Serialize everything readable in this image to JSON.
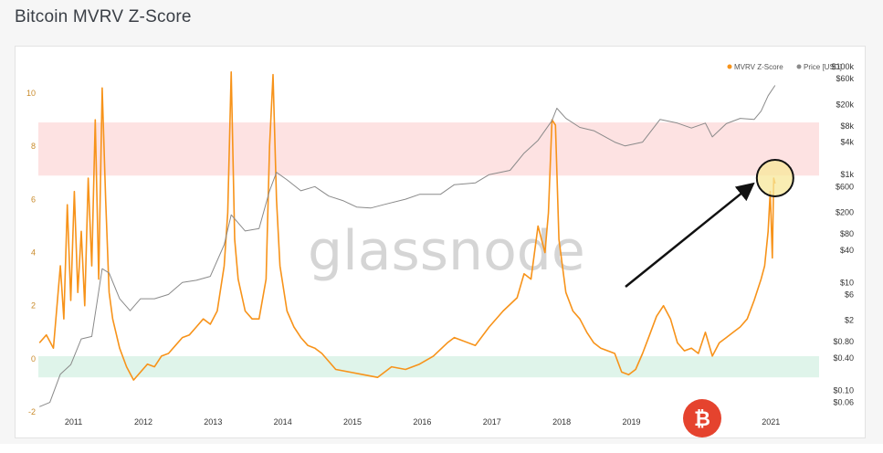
{
  "page": {
    "title": "Bitcoin MVRV Z-Score"
  },
  "watermark": "glassnode",
  "colors": {
    "mvrv": "#f7931a",
    "price": "#8a8a8a",
    "red_band": "#fde2e2",
    "green_band": "#dff4ea",
    "highlight": "#f7e79a",
    "arrow": "#111111",
    "logo": "#e5432e"
  },
  "logo_icon": "bitcoin-logo",
  "chart_data": {
    "type": "line",
    "title": "",
    "xlabel": "",
    "ylabel": "",
    "x_ticks": [
      "2011",
      "2012",
      "2013",
      "2014",
      "2015",
      "2016",
      "2017",
      "2018",
      "2019",
      "2020",
      "2021"
    ],
    "x_range": [
      2010.6,
      2021.6
    ],
    "left_axis": {
      "ticks": [
        -2,
        0,
        2,
        4,
        6,
        8,
        10
      ],
      "ylim": [
        -2,
        11
      ],
      "series": "MVRV Z-Score"
    },
    "right_axis": {
      "ticks": [
        "$0.06",
        "$0.10",
        "$0.40",
        "$0.80",
        "$2",
        "$6",
        "$10",
        "$40",
        "$80",
        "$200",
        "$600",
        "$1k",
        "$4k",
        "$8k",
        "$20k",
        "$60k",
        "$100k"
      ],
      "scale": "log",
      "ylim": [
        0.04,
        100000
      ],
      "series": "Price [USD]"
    },
    "bands": [
      {
        "name": "red",
        "y0": 6.9,
        "y1": 8.9
      },
      {
        "name": "green",
        "y0": -0.7,
        "y1": 0.1
      }
    ],
    "legend": {
      "position": "top-right",
      "items": [
        "MVRV Z-Score",
        "Price [USD]"
      ]
    },
    "series": [
      {
        "name": "MVRV Z-Score",
        "axis": "left",
        "x": [
          2010.55,
          2010.65,
          2010.75,
          2010.85,
          2010.9,
          2010.95,
          2011.0,
          2011.05,
          2011.1,
          2011.15,
          2011.2,
          2011.25,
          2011.3,
          2011.35,
          2011.4,
          2011.45,
          2011.5,
          2011.55,
          2011.6,
          2011.7,
          2011.8,
          2011.9,
          2012.0,
          2012.1,
          2012.2,
          2012.3,
          2012.4,
          2012.5,
          2012.6,
          2012.7,
          2012.8,
          2012.9,
          2013.0,
          2013.1,
          2013.2,
          2013.25,
          2013.3,
          2013.35,
          2013.4,
          2013.5,
          2013.6,
          2013.7,
          2013.8,
          2013.85,
          2013.9,
          2013.95,
          2014.0,
          2014.1,
          2014.2,
          2014.3,
          2014.4,
          2014.5,
          2014.6,
          2014.8,
          2015.0,
          2015.2,
          2015.4,
          2015.6,
          2015.8,
          2016.0,
          2016.2,
          2016.4,
          2016.5,
          2016.6,
          2016.8,
          2017.0,
          2017.2,
          2017.4,
          2017.5,
          2017.6,
          2017.7,
          2017.8,
          2017.85,
          2017.9,
          2017.95,
          2018.0,
          2018.05,
          2018.1,
          2018.2,
          2018.3,
          2018.4,
          2018.5,
          2018.6,
          2018.8,
          2018.9,
          2019.0,
          2019.1,
          2019.2,
          2019.3,
          2019.4,
          2019.5,
          2019.6,
          2019.7,
          2019.8,
          2019.9,
          2020.0,
          2020.1,
          2020.2,
          2020.3,
          2020.4,
          2020.5,
          2020.6,
          2020.7,
          2020.8,
          2020.9,
          2020.95,
          2021.0,
          2021.03,
          2021.06,
          2021.08,
          2021.1
        ],
        "values": [
          0.6,
          0.9,
          0.4,
          3.5,
          1.5,
          5.8,
          2.2,
          6.3,
          2.5,
          4.8,
          2.0,
          6.8,
          3.5,
          9.0,
          3.0,
          10.2,
          6.0,
          2.5,
          1.5,
          0.4,
          -0.3,
          -0.8,
          -0.5,
          -0.2,
          -0.3,
          0.1,
          0.2,
          0.5,
          0.8,
          0.9,
          1.2,
          1.5,
          1.3,
          1.8,
          3.5,
          5.5,
          10.8,
          4.5,
          3.0,
          1.8,
          1.5,
          1.5,
          3.0,
          8.0,
          10.7,
          6.0,
          3.5,
          1.8,
          1.2,
          0.8,
          0.5,
          0.4,
          0.2,
          -0.4,
          -0.5,
          -0.6,
          -0.7,
          -0.3,
          -0.4,
          -0.2,
          0.1,
          0.6,
          0.8,
          0.7,
          0.5,
          1.2,
          1.8,
          2.3,
          3.2,
          3.0,
          5.0,
          4.0,
          5.5,
          9.0,
          8.8,
          4.5,
          3.5,
          2.5,
          1.8,
          1.5,
          1.0,
          0.6,
          0.4,
          0.2,
          -0.5,
          -0.6,
          -0.4,
          0.2,
          0.9,
          1.6,
          2.0,
          1.5,
          0.6,
          0.3,
          0.4,
          0.2,
          1.0,
          0.1,
          0.6,
          0.8,
          1.0,
          1.2,
          1.5,
          2.2,
          3.0,
          3.5,
          4.8,
          6.3,
          3.8,
          6.8,
          6.6
        ]
      },
      {
        "name": "Price [USD]",
        "axis": "right",
        "x": [
          2010.55,
          2010.7,
          2010.85,
          2011.0,
          2011.15,
          2011.3,
          2011.45,
          2011.55,
          2011.7,
          2011.85,
          2012.0,
          2012.2,
          2012.4,
          2012.6,
          2012.8,
          2013.0,
          2013.2,
          2013.3,
          2013.5,
          2013.7,
          2013.85,
          2013.95,
          2014.1,
          2014.3,
          2014.5,
          2014.7,
          2014.9,
          2015.1,
          2015.3,
          2015.5,
          2015.8,
          2016.0,
          2016.3,
          2016.5,
          2016.8,
          2017.0,
          2017.3,
          2017.5,
          2017.7,
          2017.9,
          2017.97,
          2018.1,
          2018.3,
          2018.5,
          2018.8,
          2018.95,
          2019.2,
          2019.45,
          2019.7,
          2019.9,
          2020.1,
          2020.2,
          2020.4,
          2020.6,
          2020.8,
          2020.9,
          2021.0,
          2021.1
        ],
        "values": [
          0.05,
          0.06,
          0.2,
          0.3,
          0.9,
          1.0,
          18,
          15,
          5,
          3,
          5,
          5,
          6,
          10,
          11,
          13,
          50,
          180,
          90,
          100,
          500,
          1100,
          800,
          500,
          600,
          400,
          330,
          250,
          240,
          280,
          350,
          430,
          430,
          650,
          700,
          1000,
          1200,
          2500,
          4300,
          10000,
          17000,
          11000,
          7500,
          6500,
          4000,
          3400,
          4000,
          10500,
          9000,
          7300,
          9000,
          5000,
          8800,
          11000,
          10500,
          15000,
          29000,
          45000
        ]
      }
    ]
  }
}
